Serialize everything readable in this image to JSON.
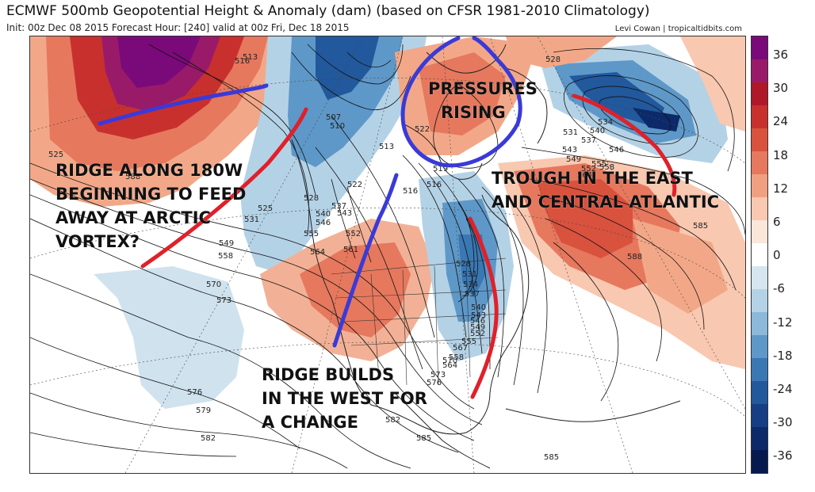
{
  "header": {
    "title": "ECMWF 500mb Geopotential Height & Anomaly (dam) (based on CFSR 1981-2010 Climatology)",
    "subtitle": "Init: 00z Dec 08 2015   Forecast Hour: [240]   valid at 00z Fri, Dec 18 2015",
    "credit": "Levi Cowan | tropicaltidbits.com"
  },
  "colorbar": {
    "labels": [
      "36",
      "30",
      "24",
      "18",
      "12",
      "6",
      "0",
      "-6",
      "-12",
      "-18",
      "-24",
      "-30",
      "-36"
    ],
    "colors": [
      "#7a0a7a",
      "#9a1a6a",
      "#b0182a",
      "#c8302e",
      "#d8523e",
      "#e6785e",
      "#f0a080",
      "#f8c8b0",
      "#fbe6da",
      "#ffffff",
      "#d6e6f0",
      "#b4d2e6",
      "#8cb8da",
      "#5e98c8",
      "#3a78b4",
      "#22589c",
      "#163e84",
      "#0c2a6a",
      "#061a50"
    ]
  },
  "annotations": {
    "ridge_180w": [
      "RIDGE ALONG 180W",
      "BEGINNING TO FEED",
      "AWAY AT ARCTIC",
      "VORTEX?"
    ],
    "pressures": [
      "PRESSURES",
      "RISING"
    ],
    "trough_east": [
      "TROUGH IN THE EAST",
      "AND CENTRAL ATLANTIC"
    ],
    "ridge_west": [
      "RIDGE BUILDS",
      "IN THE WEST FOR",
      "A CHANGE"
    ]
  },
  "contour_labels": [
    "513",
    "516",
    "507",
    "510",
    "513",
    "522",
    "516",
    "516",
    "519",
    "522",
    "525",
    "528",
    "531",
    "537",
    "540",
    "543",
    "546",
    "549",
    "552",
    "555",
    "558",
    "561",
    "564",
    "570",
    "573",
    "576",
    "579",
    "582",
    "585",
    "588",
    "525",
    "528",
    "531",
    "534",
    "537",
    "540",
    "543",
    "546",
    "549",
    "552",
    "555",
    "558",
    "564",
    "567",
    "570",
    "573",
    "576",
    "582",
    "585",
    "585",
    "588",
    "528",
    "531",
    "534",
    "537",
    "540",
    "543",
    "546",
    "549",
    "552",
    "555",
    "558",
    "564"
  ]
}
